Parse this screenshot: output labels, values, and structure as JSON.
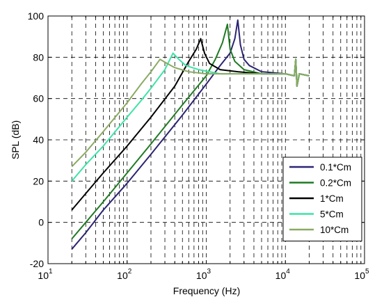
{
  "chart_data": {
    "type": "line",
    "xlabel": "Frequency (Hz)",
    "ylabel": "SPL (dB)",
    "xscale": "log",
    "xlim": [
      10,
      100000
    ],
    "ylim": [
      -20,
      100
    ],
    "yticks": [
      "-20",
      "0",
      "20",
      "40",
      "60",
      "80",
      "100"
    ],
    "xticks": [
      {
        "base": "10",
        "exp": "1"
      },
      {
        "base": "10",
        "exp": "2"
      },
      {
        "base": "10",
        "exp": "3"
      },
      {
        "base": "10",
        "exp": "4"
      },
      {
        "base": "10",
        "exp": "5"
      }
    ],
    "grid": true,
    "legend_position": "lower-right",
    "series": [
      {
        "name": "0.1*Cm",
        "color": "#2b2473",
        "x": [
          20,
          30,
          50,
          100,
          200,
          500,
          1000,
          1500,
          2000,
          2300,
          2500,
          2700,
          3000,
          3500,
          5000,
          10000,
          13000,
          13500,
          14000,
          15000,
          20000
        ],
        "y": [
          -13,
          -5,
          6,
          19,
          33,
          52,
          67,
          76,
          82,
          89,
          98,
          86,
          79,
          76,
          73,
          72,
          71,
          79,
          66,
          72,
          71
        ]
      },
      {
        "name": "0.2*Cm",
        "color": "#1f7a22",
        "x": [
          20,
          30,
          50,
          100,
          200,
          500,
          1000,
          1300,
          1600,
          1850,
          2000,
          2300,
          3000,
          5000,
          10000,
          13000,
          13500,
          14000,
          15000,
          20000
        ],
        "y": [
          -8,
          0,
          10,
          24,
          38,
          57,
          71,
          79,
          87,
          96,
          84,
          78,
          74,
          72,
          72,
          71,
          79,
          66,
          72,
          71
        ]
      },
      {
        "name": "1*Cm",
        "color": "#000000",
        "x": [
          20,
          30,
          50,
          100,
          200,
          400,
          600,
          750,
          850,
          950,
          1100,
          1500,
          2500,
          5000,
          10000,
          13000,
          13500,
          14000,
          15000,
          20000
        ],
        "y": [
          6,
          14,
          24,
          37,
          51,
          66,
          78,
          84,
          89,
          82,
          77,
          74,
          73,
          72,
          72,
          71,
          79,
          66,
          72,
          71
        ]
      },
      {
        "name": "5*Cm",
        "color": "#3de3a6",
        "x": [
          20,
          30,
          50,
          100,
          150,
          200,
          300,
          380,
          450,
          550,
          800,
          1500,
          3000,
          10000,
          13000,
          13500,
          14000,
          15000,
          20000
        ],
        "y": [
          20,
          28,
          37,
          51,
          59,
          65,
          74,
          82,
          79,
          76,
          74,
          72,
          72,
          72,
          71,
          79,
          66,
          72,
          71
        ]
      },
      {
        "name": "10*Cm",
        "color": "#8aaa62",
        "x": [
          20,
          30,
          50,
          100,
          150,
          200,
          260,
          320,
          400,
          600,
          1000,
          3000,
          10000,
          13000,
          13500,
          14000,
          15000,
          20000
        ],
        "y": [
          27,
          34,
          44,
          58,
          67,
          73,
          79,
          77,
          75,
          73,
          72,
          72,
          72,
          71,
          79,
          66,
          72,
          71
        ]
      }
    ]
  }
}
